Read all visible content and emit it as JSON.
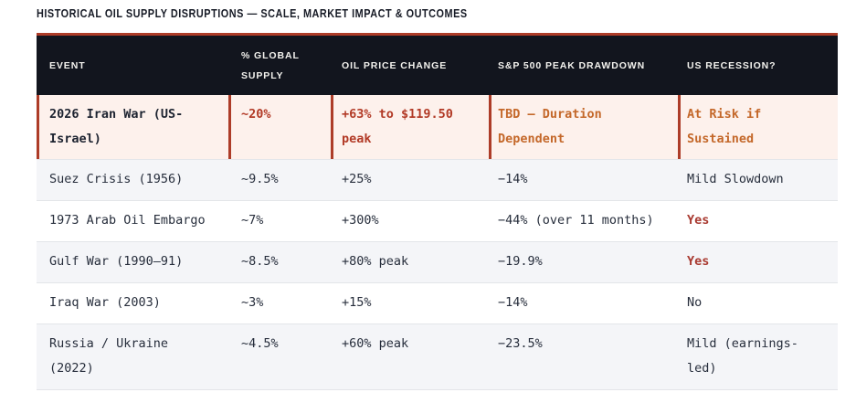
{
  "chart_data": {
    "type": "table",
    "title": "HISTORICAL OIL SUPPLY DISRUPTIONS — SCALE, MARKET IMPACT & OUTCOMES",
    "columns": [
      "EVENT",
      "% GLOBAL SUPPLY",
      "OIL PRICE CHANGE",
      "S&P 500 PEAK DRAWDOWN",
      "US RECESSION?"
    ],
    "rows": [
      {
        "event": "2026 Iran War (US-Israel)",
        "global_supply": "~20%",
        "oil_price_change": "+63% to $119.50 peak",
        "sp500_peak_drawdown": "TBD — Duration Dependent",
        "us_recession": "At Risk if Sustained",
        "highlighted": true
      },
      {
        "event": "Suez Crisis (1956)",
        "global_supply": "~9.5%",
        "oil_price_change": "+25%",
        "sp500_peak_drawdown": "−14%",
        "us_recession": "Mild Slowdown",
        "highlighted": false
      },
      {
        "event": "1973 Arab Oil Embargo",
        "global_supply": "~7%",
        "oil_price_change": "+300%",
        "sp500_peak_drawdown": "−44% (over 11 months)",
        "us_recession": "Yes",
        "recession_emphasis": true,
        "highlighted": false
      },
      {
        "event": "Gulf War (1990–91)",
        "global_supply": "~8.5%",
        "oil_price_change": "+80% peak",
        "sp500_peak_drawdown": "−19.9%",
        "us_recession": "Yes",
        "recession_emphasis": true,
        "highlighted": false
      },
      {
        "event": "Iraq War (2003)",
        "global_supply": "~3%",
        "oil_price_change": "+15%",
        "sp500_peak_drawdown": "−14%",
        "us_recession": "No",
        "highlighted": false
      },
      {
        "event": "Russia / Ukraine (2022)",
        "global_supply": "~4.5%",
        "oil_price_change": "+60% peak",
        "sp500_peak_drawdown": "−23.5%",
        "us_recession": "Mild (earnings-led)",
        "highlighted": false
      }
    ],
    "layout": {
      "highlighted_row_index": 0,
      "striped_rows": true
    }
  },
  "colors": {
    "rust": "#ad3c28",
    "red-text": "#b23a26",
    "orange-text": "#c4682a",
    "yes-red": "#a93a31",
    "header-bg": "#12151e",
    "header-text": "#f3f2ee",
    "title-text": "#171b26",
    "body-text": "#272e3c",
    "row-alt": "#f4f5f8",
    "divider": "#e3e5e9",
    "highlight-bg": "#fdf1ec"
  }
}
